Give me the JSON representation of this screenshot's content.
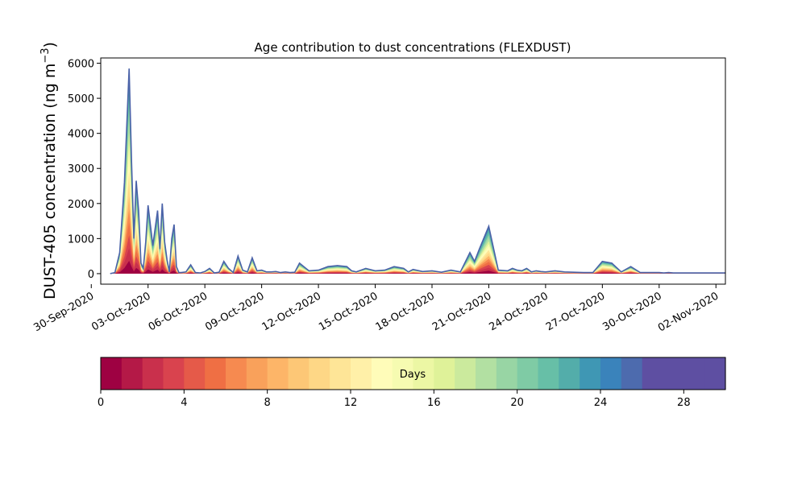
{
  "chart_data": {
    "type": "area",
    "title": "Age contribution to dust concentrations (FLEXDUST)",
    "ylabel": "DUST-405 concentration (ng m",
    "ylabel_sup": "−3",
    "ylabel_close": ")",
    "xlabel": "",
    "ylim": [
      -300,
      6150
    ],
    "xlim": [
      "2020-09-30T12:00",
      "2020-11-02T12:00"
    ],
    "yticks": [
      0,
      1000,
      2000,
      3000,
      4000,
      5000,
      6000
    ],
    "xticks": [
      {
        "date": "2020-09-30",
        "label": "30-Sep-2020"
      },
      {
        "date": "2020-10-03",
        "label": "03-Oct-2020"
      },
      {
        "date": "2020-10-06",
        "label": "06-Oct-2020"
      },
      {
        "date": "2020-10-09",
        "label": "09-Oct-2020"
      },
      {
        "date": "2020-10-12",
        "label": "12-Oct-2020"
      },
      {
        "date": "2020-10-15",
        "label": "15-Oct-2020"
      },
      {
        "date": "2020-10-18",
        "label": "18-Oct-2020"
      },
      {
        "date": "2020-10-21",
        "label": "21-Oct-2020"
      },
      {
        "date": "2020-10-24",
        "label": "24-Oct-2020"
      },
      {
        "date": "2020-10-27",
        "label": "27-Oct-2020"
      },
      {
        "date": "2020-10-30",
        "label": "30-Oct-2020"
      },
      {
        "date": "2020-11-02",
        "label": "02-Nov-2020"
      }
    ],
    "total_series": {
      "x": [
        "2020-10-01T00:00",
        "2020-10-01T06:00",
        "2020-10-01T12:00",
        "2020-10-01T18:00",
        "2020-10-02T00:00",
        "2020-10-02T03:00",
        "2020-10-02T06:00",
        "2020-10-02T09:00",
        "2020-10-02T12:00",
        "2020-10-02T15:00",
        "2020-10-02T18:00",
        "2020-10-02T21:00",
        "2020-10-03T00:00",
        "2020-10-03T06:00",
        "2020-10-03T12:00",
        "2020-10-03T15:00",
        "2020-10-03T18:00",
        "2020-10-03T21:00",
        "2020-10-04T00:00",
        "2020-10-04T03:00",
        "2020-10-04T06:00",
        "2020-10-04T09:00",
        "2020-10-04T12:00",
        "2020-10-04T15:00",
        "2020-10-04T18:00",
        "2020-10-05T00:00",
        "2020-10-05T06:00",
        "2020-10-05T12:00",
        "2020-10-05T18:00",
        "2020-10-06T00:00",
        "2020-10-06T06:00",
        "2020-10-06T12:00",
        "2020-10-06T18:00",
        "2020-10-07T00:00",
        "2020-10-07T06:00",
        "2020-10-07T12:00",
        "2020-10-07T18:00",
        "2020-10-08T00:00",
        "2020-10-08T06:00",
        "2020-10-08T12:00",
        "2020-10-08T18:00",
        "2020-10-09T00:00",
        "2020-10-09T06:00",
        "2020-10-09T12:00",
        "2020-10-09T18:00",
        "2020-10-10T00:00",
        "2020-10-10T06:00",
        "2020-10-10T12:00",
        "2020-10-10T18:00",
        "2020-10-11T00:00",
        "2020-10-11T12:00",
        "2020-10-12T00:00",
        "2020-10-12T12:00",
        "2020-10-13T00:00",
        "2020-10-13T12:00",
        "2020-10-13T18:00",
        "2020-10-14T00:00",
        "2020-10-14T12:00",
        "2020-10-15T00:00",
        "2020-10-15T12:00",
        "2020-10-16T00:00",
        "2020-10-16T12:00",
        "2020-10-16T18:00",
        "2020-10-17T00:00",
        "2020-10-17T12:00",
        "2020-10-18T00:00",
        "2020-10-18T12:00",
        "2020-10-19T00:00",
        "2020-10-19T12:00",
        "2020-10-20T00:00",
        "2020-10-20T06:00",
        "2020-10-20T12:00",
        "2020-10-21T00:00",
        "2020-10-21T12:00",
        "2020-10-22T00:00",
        "2020-10-22T06:00",
        "2020-10-22T12:00",
        "2020-10-22T18:00",
        "2020-10-23T00:00",
        "2020-10-23T06:00",
        "2020-10-23T12:00",
        "2020-10-23T18:00",
        "2020-10-24T00:00",
        "2020-10-24T12:00",
        "2020-10-25T00:00",
        "2020-10-25T12:00",
        "2020-10-26T00:00",
        "2020-10-26T12:00",
        "2020-10-27T00:00",
        "2020-10-27T12:00",
        "2020-10-28T00:00",
        "2020-10-28T12:00",
        "2020-10-29T00:00",
        "2020-10-29T12:00",
        "2020-10-30T00:00",
        "2020-10-30T06:00",
        "2020-10-30T12:00",
        "2020-10-30T18:00",
        "2020-10-31T00:00",
        "2020-10-31T06:00",
        "2020-10-31T12:00",
        "2020-11-01T00:00",
        "2020-11-01T12:00",
        "2020-11-02T00:00",
        "2020-11-02T12:00"
      ],
      "y": [
        0,
        30,
        600,
        2600,
        5850,
        3200,
        1000,
        2650,
        1800,
        300,
        150,
        900,
        1950,
        800,
        1800,
        700,
        2000,
        900,
        400,
        50,
        1000,
        1400,
        200,
        30,
        30,
        50,
        250,
        30,
        20,
        60,
        150,
        20,
        40,
        350,
        150,
        30,
        500,
        100,
        50,
        450,
        80,
        100,
        50,
        50,
        60,
        30,
        50,
        30,
        40,
        300,
        80,
        100,
        200,
        230,
        200,
        80,
        50,
        150,
        80,
        100,
        200,
        150,
        50,
        120,
        60,
        80,
        40,
        100,
        50,
        600,
        350,
        700,
        1350,
        100,
        80,
        150,
        100,
        80,
        150,
        50,
        80,
        60,
        50,
        80,
        50,
        40,
        30,
        30,
        350,
        300,
        50,
        200,
        30,
        30,
        30,
        20,
        30,
        20,
        20,
        20,
        20,
        20,
        20,
        20,
        20
      ],
      "stroke_color": "#4a62a8"
    },
    "colorbar": {
      "label": "Days",
      "min": 0,
      "max": 30,
      "n_bins": 30,
      "ticks": [
        0,
        4,
        8,
        12,
        16,
        20,
        24,
        28
      ],
      "colormap": "Spectral",
      "colors": [
        "#9e0142",
        "#b41947",
        "#c9304c",
        "#d9434e",
        "#e55a49",
        "#ef6f44",
        "#f68a50",
        "#f9a15b",
        "#fdb568",
        "#fdc776",
        "#fed786",
        "#fee597",
        "#fff0a8",
        "#fffcb9",
        "#f6fbb1",
        "#ecf7a4",
        "#dff299",
        "#cbea9d",
        "#b2e0a2",
        "#98d5a4",
        "#7fcba5",
        "#67bfa7",
        "#53adaa",
        "#3f97b4",
        "#3a83bb",
        "#4d6bae",
        "#5e4fa2",
        "#5e4fa2",
        "#5e4fa2",
        "#5e4fa2"
      ]
    }
  }
}
